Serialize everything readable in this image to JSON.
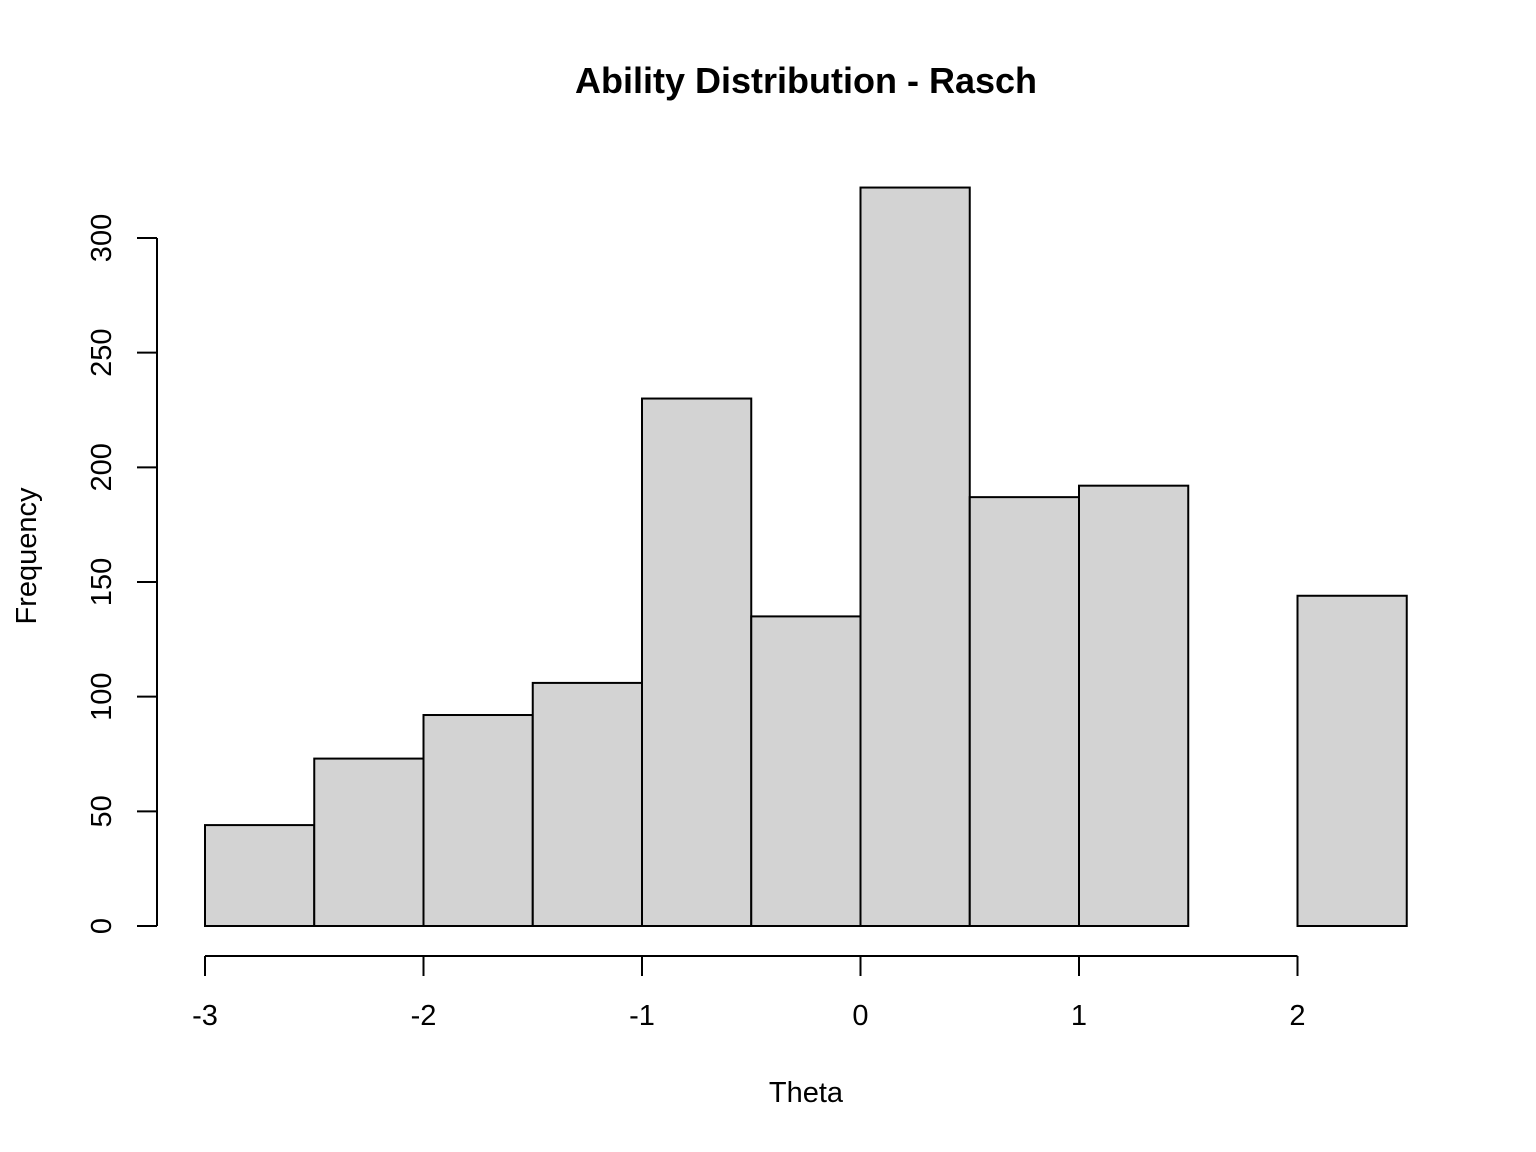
{
  "chart_data": {
    "type": "bar",
    "title": "Ability Distribution - Rasch",
    "xlabel": "Theta",
    "ylabel": "Frequency",
    "bin_edges": [
      -3,
      -2.5,
      -2,
      -1.5,
      -1,
      -0.5,
      0,
      0.5,
      1,
      1.5,
      2,
      2.5
    ],
    "values": [
      44,
      73,
      92,
      106,
      230,
      135,
      322,
      187,
      192,
      0,
      144
    ],
    "xlim": [
      -3,
      2.5
    ],
    "ylim": [
      0,
      322
    ],
    "x_ticks": [
      -3,
      -2,
      -1,
      0,
      1,
      2
    ],
    "x_tick_labels": [
      "-3",
      "-2",
      "-1",
      "0",
      "1",
      "2"
    ],
    "y_ticks": [
      0,
      50,
      100,
      150,
      200,
      250,
      300
    ],
    "y_tick_labels": [
      "0",
      "50",
      "100",
      "150",
      "200",
      "250",
      "300"
    ],
    "bar_color": "#d3d3d3",
    "grid": false
  }
}
